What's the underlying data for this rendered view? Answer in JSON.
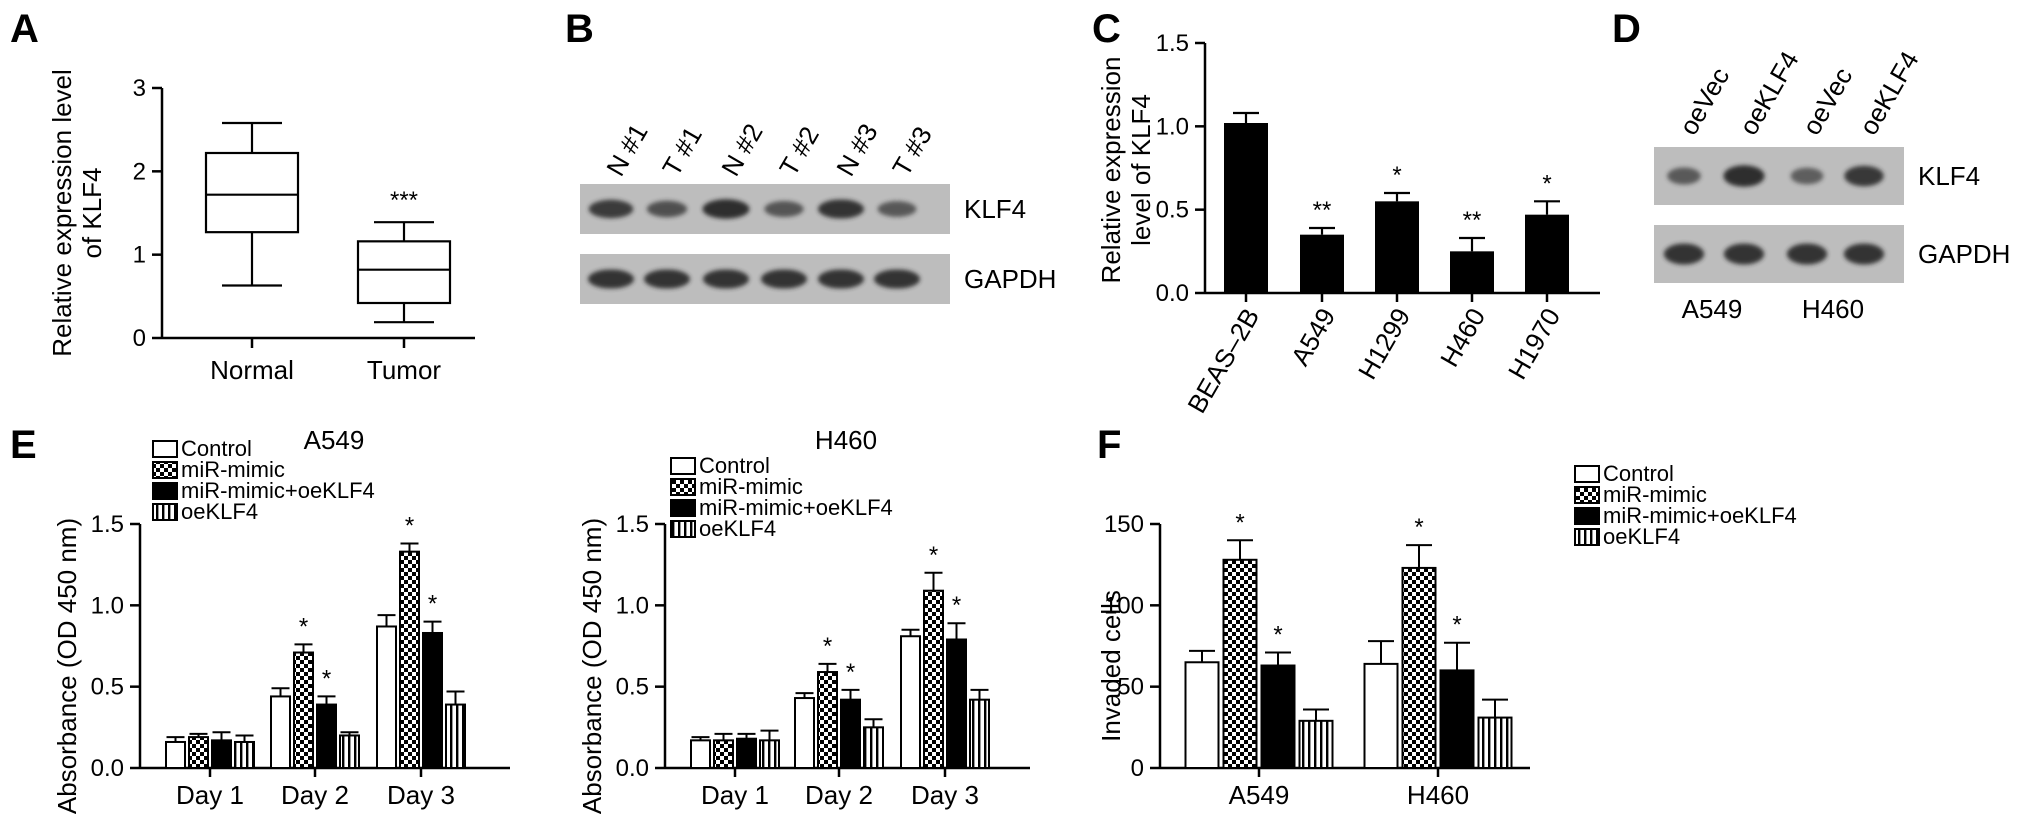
{
  "panels": {
    "A": "A",
    "B": "B",
    "C": "C",
    "D": "D",
    "E": "E",
    "F": "F"
  },
  "colors": {
    "black": "#000000",
    "white": "#ffffff",
    "blot_bg": "#bdbdbd",
    "band": "#2a2a2a"
  },
  "chart_data": [
    {
      "id": "A",
      "type": "box",
      "ylabel": "Relative expression level\nof KLF4",
      "ylim": [
        0,
        3
      ],
      "yticks": [
        0,
        1,
        2,
        3
      ],
      "categories": [
        "Normal",
        "Tumor"
      ],
      "boxes": [
        {
          "min": 0.63,
          "q1": 1.27,
          "median": 1.72,
          "q3": 2.22,
          "max": 2.58,
          "sig": ""
        },
        {
          "min": 0.19,
          "q1": 0.42,
          "median": 0.82,
          "q3": 1.16,
          "max": 1.39,
          "sig": "***"
        }
      ]
    },
    {
      "id": "C",
      "type": "bar",
      "ylabel": "Relative expression\nlevel of KLF4",
      "ylim": [
        0,
        1.5
      ],
      "yticks": [
        "0.0",
        "0.5",
        "1.0",
        "1.5"
      ],
      "categories": [
        "BEAS–2B",
        "A549",
        "H1299",
        "H460",
        "H1970"
      ],
      "values": [
        1.02,
        0.35,
        0.55,
        0.25,
        0.47
      ],
      "errors": [
        0.06,
        0.04,
        0.05,
        0.08,
        0.08
      ],
      "sig": [
        "",
        "**",
        "*",
        "**",
        "*"
      ]
    },
    {
      "id": "E1",
      "type": "grouped-bar",
      "title": "A549",
      "ylabel": "Absorbance (OD 450 nm)",
      "ylim": [
        0,
        1.5
      ],
      "yticks": [
        "0.0",
        "0.5",
        "1.0",
        "1.5"
      ],
      "categories": [
        "Day 1",
        "Day 2",
        "Day 3"
      ],
      "series": [
        {
          "name": "Control",
          "values": [
            0.16,
            0.44,
            0.87
          ],
          "errors": [
            0.03,
            0.05,
            0.07
          ],
          "sig": [
            "",
            "",
            ""
          ]
        },
        {
          "name": "miR-mimic",
          "values": [
            0.19,
            0.71,
            1.33
          ],
          "errors": [
            0.02,
            0.05,
            0.05
          ],
          "sig": [
            "",
            "*",
            "*"
          ]
        },
        {
          "name": "miR-mimic+oeKLF4",
          "values": [
            0.17,
            0.39,
            0.83
          ],
          "errors": [
            0.05,
            0.05,
            0.07
          ],
          "sig": [
            "",
            "*",
            "*"
          ]
        },
        {
          "name": "oeKLF4",
          "values": [
            0.16,
            0.2,
            0.39
          ],
          "errors": [
            0.04,
            0.02,
            0.08
          ],
          "sig": [
            "",
            "",
            ""
          ]
        }
      ]
    },
    {
      "id": "E2",
      "type": "grouped-bar",
      "title": "H460",
      "ylabel": "Absorbance (OD 450 nm)",
      "ylim": [
        0,
        1.5
      ],
      "yticks": [
        "0.0",
        "0.5",
        "1.0",
        "1.5"
      ],
      "categories": [
        "Day 1",
        "Day 2",
        "Day 3"
      ],
      "series": [
        {
          "name": "Control",
          "values": [
            0.17,
            0.43,
            0.81
          ],
          "errors": [
            0.02,
            0.03,
            0.04
          ],
          "sig": [
            "",
            "",
            ""
          ]
        },
        {
          "name": "miR-mimic",
          "values": [
            0.17,
            0.59,
            1.09
          ],
          "errors": [
            0.04,
            0.05,
            0.11
          ],
          "sig": [
            "",
            "*",
            "*"
          ]
        },
        {
          "name": "miR-mimic+oeKLF4",
          "values": [
            0.18,
            0.42,
            0.79
          ],
          "errors": [
            0.03,
            0.06,
            0.1
          ],
          "sig": [
            "",
            "*",
            "*"
          ]
        },
        {
          "name": "oeKLF4",
          "values": [
            0.17,
            0.25,
            0.42
          ],
          "errors": [
            0.06,
            0.05,
            0.06
          ],
          "sig": [
            "",
            "",
            ""
          ]
        }
      ]
    },
    {
      "id": "F",
      "type": "grouped-bar",
      "ylabel": "Invaded cells",
      "ylim": [
        0,
        150
      ],
      "yticks": [
        "0",
        "50",
        "100",
        "150"
      ],
      "categories": [
        "A549",
        "H460"
      ],
      "series": [
        {
          "name": "Control",
          "values": [
            65,
            64
          ],
          "errors": [
            7,
            14
          ],
          "sig": [
            "",
            ""
          ]
        },
        {
          "name": "miR-mimic",
          "values": [
            128,
            123
          ],
          "errors": [
            12,
            14
          ],
          "sig": [
            "*",
            "*"
          ]
        },
        {
          "name": "miR-mimic+oeKLF4",
          "values": [
            63,
            60
          ],
          "errors": [
            8,
            17
          ],
          "sig": [
            "*",
            "*"
          ]
        },
        {
          "name": "oeKLF4",
          "values": [
            29,
            31
          ],
          "errors": [
            7,
            11
          ],
          "sig": [
            "",
            ""
          ]
        }
      ]
    }
  ],
  "blot_B": {
    "lanes": [
      "N #1",
      "T #1",
      "N #2",
      "T #2",
      "N #3",
      "T #3"
    ],
    "rows": [
      "KLF4",
      "GAPDH"
    ],
    "intensity": [
      [
        0.82,
        0.6,
        0.95,
        0.55,
        0.9,
        0.52
      ],
      [
        0.9,
        0.9,
        0.9,
        0.9,
        0.9,
        0.9
      ]
    ]
  },
  "blot_D": {
    "lanes": [
      "oeVec",
      "oeKLF4",
      "oeVec",
      "oeKLF4"
    ],
    "rows": [
      "KLF4",
      "GAPDH"
    ],
    "groups": [
      "A549",
      "H460"
    ],
    "intensity": [
      [
        0.5,
        0.95,
        0.45,
        0.85
      ],
      [
        0.9,
        0.9,
        0.9,
        0.9
      ]
    ]
  }
}
